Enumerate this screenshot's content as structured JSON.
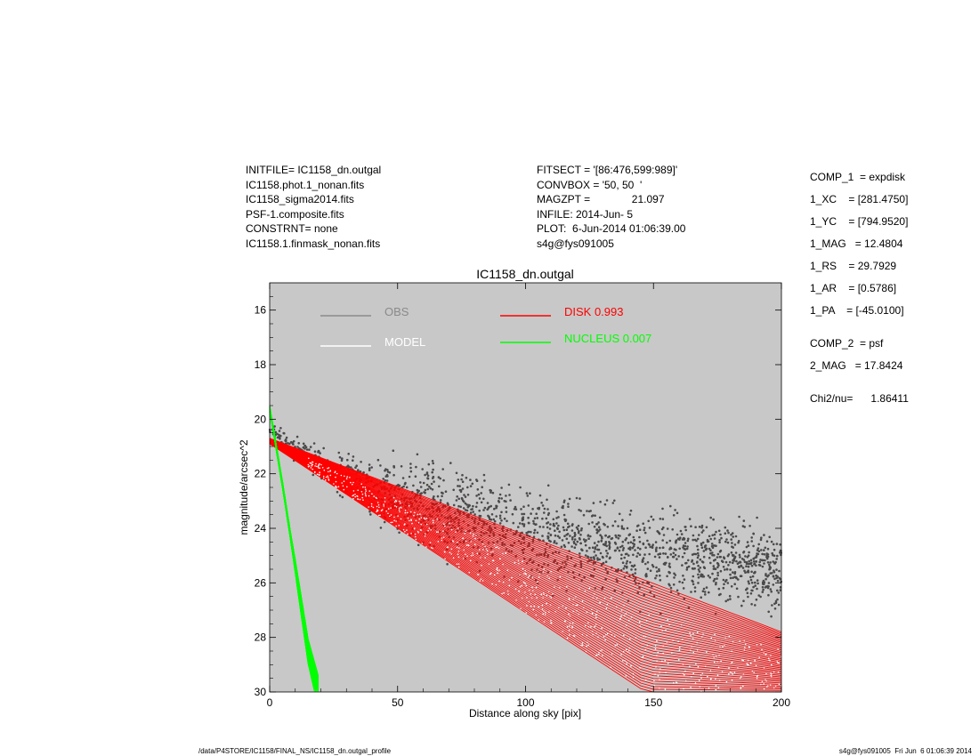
{
  "header_left": [
    "INITFILE= IC1158_dn.outgal",
    "IC1158.phot.1_nonan.fits",
    "IC1158_sigma2014.fits",
    "PSF-1.composite.fits",
    "CONSTRNT= none",
    "IC1158.1.finmask_nonan.fits"
  ],
  "header_middle": [
    "FITSECT = '[86:476,599:989]'",
    "CONVBOX = '50, 50  '",
    "MAGZPT =              21.097",
    "INFILE: 2014-Jun- 5",
    "PLOT:  6-Jun-2014 01:06:39.00",
    "s4g@fys091005"
  ],
  "header_right": [
    {
      "label": "COMP_1",
      "value": "= expdisk"
    },
    {
      "label": "1_XC",
      "value": "= [281.4750]"
    },
    {
      "label": "1_YC",
      "value": "= [794.9520]"
    },
    {
      "label": "1_MAG",
      "value": "= 12.4804"
    },
    {
      "label": "1_RS",
      "value": "= 29.7929"
    },
    {
      "label": "1_AR",
      "value": "= [0.5786]"
    },
    {
      "label": "1_PA",
      "value": "= [-45.0100]"
    },
    {
      "label": "COMP_2",
      "value": "= psf"
    },
    {
      "label": "2_MAG",
      "value": "= 17.8424"
    },
    {
      "label": "Chi2/nu=",
      "value": "1.86411"
    }
  ],
  "footer": {
    "left": "/data/P4STORE/IC1158/FINAL_NS/IC1158_dn.outgal_profile",
    "right": "s4g@fys091005  Fri Jun  6 01:06:39 2014"
  },
  "colors": {
    "plot_bg": "#c8c8c8",
    "obs": "#4a4a4a",
    "model": "#ffffff",
    "disk": "#ff0000",
    "nucleus": "#00ff00"
  },
  "chart_data": {
    "type": "scatter",
    "title": "IC1158_dn.outgal",
    "xlabel": "Distance along sky [pix]",
    "ylabel": "magnitude/arcsec^2",
    "xlim": [
      0,
      200
    ],
    "ylim": [
      30,
      15
    ],
    "xticks": [
      "0",
      "50",
      "100",
      "150",
      "200"
    ],
    "yticks": [
      "16",
      "18",
      "20",
      "22",
      "24",
      "26",
      "28",
      "30"
    ],
    "grid": false,
    "legend": [
      {
        "label": "OBS",
        "color": "#8a8a8a"
      },
      {
        "label": "MODEL",
        "color": "#ffffff"
      },
      {
        "label": "DISK  0.993",
        "color": "#ff0000"
      },
      {
        "label": "NUCLEUS  0.007",
        "color": "#00ff00"
      }
    ],
    "series": [
      {
        "name": "OBS",
        "kind": "scatter",
        "x_range": [
          0,
          200
        ],
        "mag_center_at_x": [
          [
            0,
            20.4
          ],
          [
            20,
            21.7
          ],
          [
            50,
            22.8
          ],
          [
            100,
            24.1
          ],
          [
            150,
            25.0
          ],
          [
            200,
            25.6
          ]
        ],
        "mag_spread_at_x": [
          [
            0,
            0.2
          ],
          [
            50,
            1.2
          ],
          [
            100,
            1.5
          ],
          [
            200,
            1.4
          ]
        ]
      },
      {
        "name": "DISK",
        "kind": "band",
        "x_range": [
          0,
          200
        ],
        "upper_edge": [
          [
            0,
            20.7
          ],
          [
            200,
            27.8
          ]
        ],
        "lower_edge": [
          [
            0,
            20.9
          ],
          [
            147,
            30.0
          ]
        ]
      },
      {
        "name": "NUCLEUS",
        "kind": "band",
        "x_range": [
          0,
          19
        ],
        "center": [
          [
            0,
            19.6
          ],
          [
            5,
            22.4
          ],
          [
            10,
            25.4
          ],
          [
            15,
            28.5
          ],
          [
            19,
            30.0
          ]
        ],
        "width": [
          [
            0,
            0.1
          ],
          [
            8,
            0.15
          ],
          [
            12,
            0.35
          ],
          [
            19,
            0.6
          ]
        ]
      }
    ]
  }
}
